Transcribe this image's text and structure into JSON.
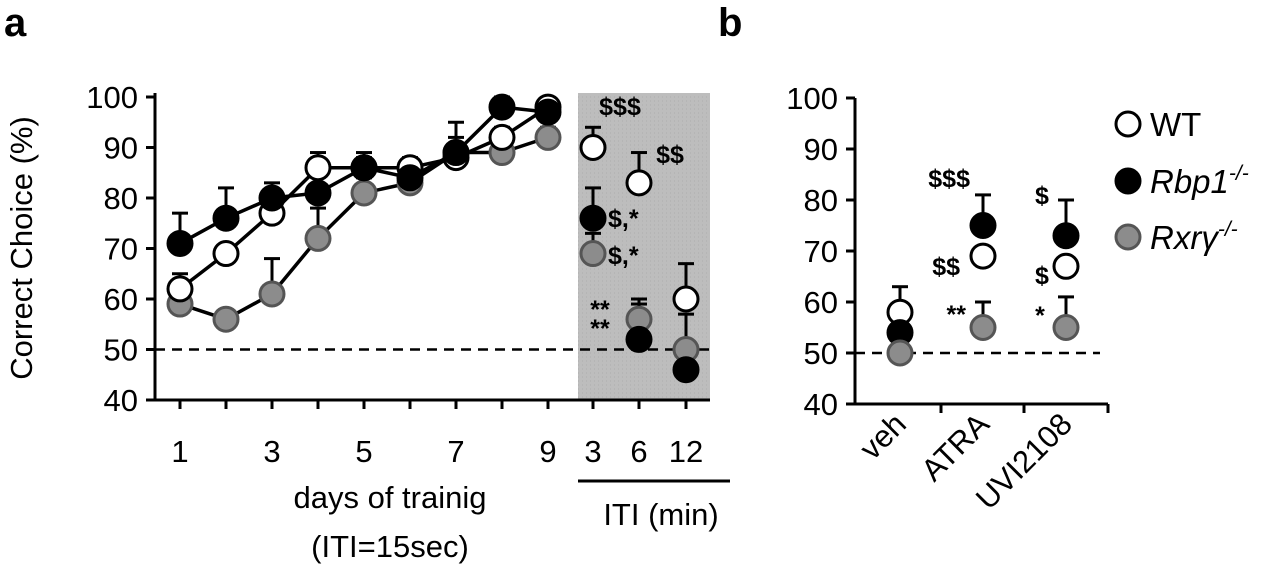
{
  "panels": [
    {
      "letter": "a"
    },
    {
      "letter": "b"
    }
  ],
  "colors": {
    "wt_fill": "#ffffff",
    "rbp1_fill": "#000000",
    "rxrg_fill": "#8c8c8c",
    "shade": "#bdbdbd"
  },
  "chart_data": [
    {
      "type": "line",
      "panel": "a",
      "ylabel": "Correct Choice (%)",
      "xlabel_lines": [
        "days of trainig",
        "(ITI=15sec)"
      ],
      "iti_label": "ITI (min)",
      "ylim": [
        40,
        100
      ],
      "yticks": [
        40,
        50,
        60,
        70,
        80,
        90,
        100
      ],
      "xticks_days": [
        "1",
        "3",
        "5",
        "7",
        "9"
      ],
      "xticks_iti": [
        "3",
        "6",
        "12"
      ],
      "chance_level": 50,
      "shaded_region": "ITI (min)",
      "days": [
        1,
        2,
        3,
        4,
        5,
        6,
        7,
        8,
        9
      ],
      "iti": [
        3,
        6,
        12
      ],
      "series": [
        {
          "name": "WT",
          "color": "#ffffff",
          "days_values": [
            62,
            69,
            77,
            86,
            86,
            86,
            88,
            92,
            98
          ],
          "days_err": [
            3,
            0,
            2,
            3,
            2,
            2,
            2,
            2,
            1
          ],
          "iti_values": [
            90,
            83,
            60
          ],
          "iti_err": [
            4,
            6,
            7
          ]
        },
        {
          "name": "Rbp1-/-",
          "color": "#000000",
          "days_values": [
            71,
            76,
            80,
            81,
            86,
            84,
            89,
            98,
            97
          ],
          "days_err": [
            6,
            6,
            3,
            4,
            3,
            3,
            6,
            2,
            1
          ],
          "iti_values": [
            76,
            52,
            46
          ],
          "iti_err": [
            6,
            7,
            5
          ]
        },
        {
          "name": "Rxrγ-/-",
          "color": "#8c8c8c",
          "days_values": [
            59,
            56,
            61,
            72,
            81,
            83,
            89,
            89,
            92
          ],
          "days_err": [
            3,
            0,
            7,
            6,
            3,
            2,
            3,
            2,
            2
          ],
          "iti_values": [
            69,
            56,
            50
          ],
          "iti_err": [
            4,
            4,
            7
          ]
        }
      ],
      "annotations": [
        {
          "text": "$$$",
          "series": "WT",
          "iti": 3
        },
        {
          "text": "$$",
          "series": "WT",
          "iti": 6
        },
        {
          "text": "$,*",
          "series": "Rbp1-/-",
          "iti": 3
        },
        {
          "text": "$,*",
          "series": "Rxrγ-/-",
          "iti": 3
        },
        {
          "text": "**",
          "series": "Rxrγ-/-",
          "iti": 6
        },
        {
          "text": "**",
          "series": "Rbp1-/-",
          "iti": 6
        }
      ]
    },
    {
      "type": "scatter",
      "panel": "b",
      "ylim": [
        40,
        100
      ],
      "yticks": [
        40,
        50,
        60,
        70,
        80,
        90,
        100
      ],
      "categories": [
        "veh",
        "ATRA",
        "UVI2108"
      ],
      "chance_level": 50,
      "series": [
        {
          "name": "WT",
          "color": "#ffffff",
          "values": [
            58,
            69,
            67
          ],
          "err": [
            5,
            0,
            0
          ]
        },
        {
          "name": "Rbp1-/-",
          "color": "#000000",
          "values": [
            54,
            75,
            73
          ],
          "err": [
            0,
            6,
            7
          ]
        },
        {
          "name": "Rxrγ-/-",
          "color": "#8c8c8c",
          "values": [
            50,
            55,
            55
          ],
          "err": [
            0,
            5,
            6
          ]
        }
      ],
      "annotations": [
        {
          "text": "$$$",
          "series": "Rbp1-/-",
          "category": "ATRA"
        },
        {
          "text": "$$",
          "series": "WT",
          "category": "ATRA"
        },
        {
          "text": "**",
          "series": "Rxrγ-/-",
          "category": "ATRA"
        },
        {
          "text": "$",
          "series": "Rbp1-/-",
          "category": "UVI2108"
        },
        {
          "text": "$",
          "series": "WT",
          "category": "UVI2108"
        },
        {
          "text": "*",
          "series": "Rxrγ-/-",
          "category": "UVI2108"
        }
      ]
    }
  ],
  "legend": {
    "placement": "top-right",
    "entries": [
      {
        "base": "WT",
        "sup": "",
        "italic": false,
        "color": "#ffffff"
      },
      {
        "base": "Rbp1",
        "sup": "-/-",
        "italic": true,
        "color": "#000000"
      },
      {
        "base": "Rxrγ",
        "sup": "-/-",
        "italic": true,
        "color": "#8c8c8c"
      }
    ]
  }
}
